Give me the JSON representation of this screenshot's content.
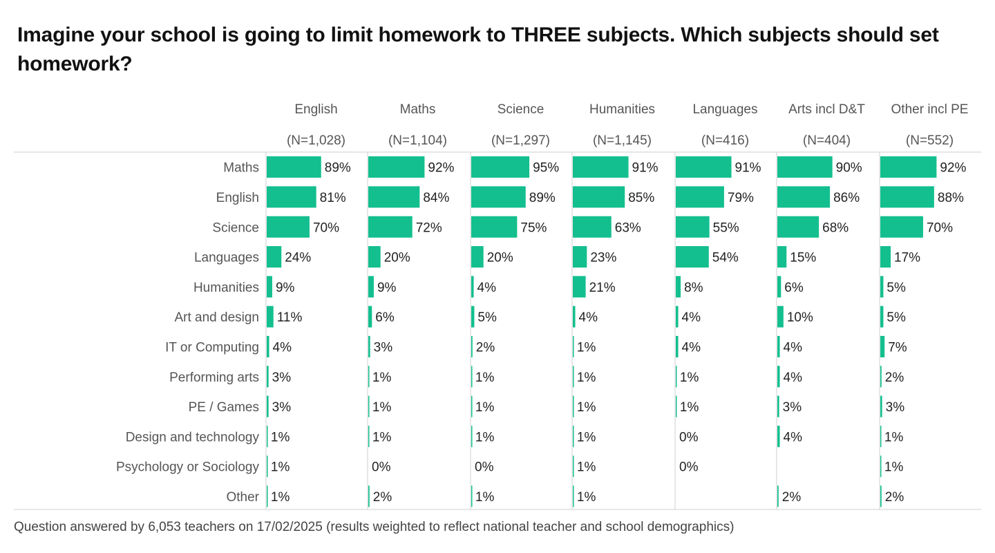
{
  "title": "Imagine your school is going to limit homework to THREE subjects. Which subjects should set homework?",
  "footnote": "Question answered by 6,053 teachers on 17/02/2025 (results weighted to reflect national teacher and school demographics)",
  "colors": {
    "bar": "#13bf8e",
    "rule": "#cfcfcf",
    "label": "#555555",
    "value": "#222222"
  },
  "chart_data": {
    "type": "bar",
    "orientation": "horizontal",
    "layout": "small-multiples",
    "value_unit": "%",
    "xlim": [
      0,
      100
    ],
    "categories": [
      "Maths",
      "English",
      "Science",
      "Languages",
      "Humanities",
      "Art and design",
      "IT or Computing",
      "Performing arts",
      "PE / Games",
      "Design and technology",
      "Psychology or Sociology",
      "Other"
    ],
    "series": [
      {
        "name": "English",
        "n_label": "(N=1,028)",
        "values": [
          89,
          81,
          70,
          24,
          9,
          11,
          4,
          3,
          3,
          1,
          1,
          1
        ]
      },
      {
        "name": "Maths",
        "n_label": "(N=1,104)",
        "values": [
          92,
          84,
          72,
          20,
          9,
          6,
          3,
          1,
          1,
          1,
          0,
          2
        ]
      },
      {
        "name": "Science",
        "n_label": "(N=1,297)",
        "values": [
          95,
          89,
          75,
          20,
          4,
          5,
          2,
          1,
          1,
          1,
          0,
          1
        ]
      },
      {
        "name": "Humanities",
        "n_label": "(N=1,145)",
        "values": [
          91,
          85,
          63,
          23,
          21,
          4,
          1,
          1,
          1,
          1,
          1,
          1
        ]
      },
      {
        "name": "Languages",
        "n_label": "(N=416)",
        "values": [
          91,
          79,
          55,
          54,
          8,
          4,
          4,
          1,
          1,
          0,
          0,
          null
        ]
      },
      {
        "name": "Arts incl D&T",
        "n_label": "(N=404)",
        "values": [
          90,
          86,
          68,
          15,
          6,
          10,
          4,
          4,
          3,
          4,
          null,
          2
        ]
      },
      {
        "name": "Other incl PE",
        "n_label": "(N=552)",
        "values": [
          92,
          88,
          70,
          17,
          5,
          5,
          7,
          2,
          3,
          1,
          1,
          2
        ]
      }
    ]
  }
}
